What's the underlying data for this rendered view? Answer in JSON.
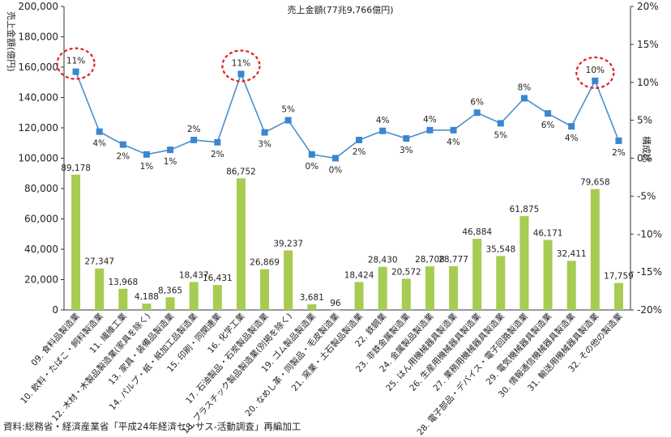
{
  "chart_data": {
    "type": "bar+line",
    "title": "売上金額(77兆9,766億円)",
    "ylabel_left": "売上金額(億円)",
    "ylabel_right": "構成比",
    "source": "資料:総務省・経済産業省「平成24年経済センサス-活動調査」再編加工",
    "ylim_left": [
      0,
      200000
    ],
    "ylim_right": [
      -20,
      20
    ],
    "yticks_left": [
      "0",
      "20,000",
      "40,000",
      "60,000",
      "80,000",
      "100,000",
      "120,000",
      "140,000",
      "160,000",
      "180,000",
      "200,000"
    ],
    "yticks_right": [
      "-20%",
      "-15%",
      "-10%",
      "-5%",
      "0%",
      "5%",
      "10%",
      "15%",
      "20%"
    ],
    "categories": [
      "09. 食料品製造業",
      "10. 飲料・たばこ・飼料製造業",
      "11. 繊維工業",
      "12. 木材・木製品製造業(家具を除く)",
      "13. 家具・装備品製造業",
      "14. パルプ・紙・紙加工品製造業",
      "15. 印刷・同関連業",
      "16. 化学工業",
      "17. 石油製品・石炭製品製造業",
      "18. プラスチック製品製造業(別掲を除く)",
      "19. ゴム製品製造業",
      "20. なめし革・同製品・毛皮製造業",
      "21. 窯業・土石製品製造業",
      "22. 鉄鋼業",
      "23. 非鉄金属製造業",
      "24. 金属製品製造業",
      "25. はん用機械器具製造業",
      "26. 生産用機械器具製造業",
      "27. 業務用機械器具製造業",
      "28. 電子部品・デバイス・電子回路製造業",
      "29. 電気機械器具製造業",
      "30. 情報通信機械器具製造業",
      "31. 輸送用機械器具製造業",
      "32. その他の製造業"
    ],
    "series": [
      {
        "kind": "bar",
        "values": [
          89178,
          27347,
          13968,
          4188,
          8365,
          18437,
          16431,
          86752,
          26869,
          39237,
          3681,
          96,
          18424,
          28430,
          20572,
          28708,
          28777,
          46884,
          35548,
          61875,
          46171,
          32411,
          79658,
          17759
        ],
        "labels": [
          "89,178",
          "27,347",
          "13,968",
          "4,188",
          "8,365",
          "18,437",
          "16,431",
          "86,752",
          "26,869",
          "39,237",
          "3,681",
          "96",
          "18,424",
          "28,430",
          "20,572",
          "28,708",
          "28,777",
          "46,884",
          "35,548",
          "61,875",
          "46,171",
          "32,411",
          "79,658",
          "17,759"
        ],
        "color": "#a6cc52"
      },
      {
        "kind": "line",
        "values": [
          11.4,
          3.5,
          1.8,
          0.5,
          1.1,
          2.4,
          2.1,
          11.1,
          3.4,
          5.0,
          0.5,
          0.0,
          2.4,
          3.6,
          2.6,
          3.7,
          3.7,
          6.0,
          4.6,
          7.9,
          5.9,
          4.2,
          10.2,
          2.3
        ],
        "labels": [
          "11%",
          "4%",
          "2%",
          "1%",
          "1%",
          "2%",
          "2%",
          "11%",
          "3%",
          "5%",
          "0%",
          "0%",
          "2%",
          "4%",
          "3%",
          "4%",
          "4%",
          "6%",
          "5%",
          "8%",
          "6%",
          "4%",
          "10%",
          "2%"
        ],
        "color": "#4a90cc",
        "marker_color": "#3a86d0"
      }
    ],
    "highlighted_indices": [
      0,
      7,
      22
    ],
    "highlight_color": "#e02020",
    "grid": false
  }
}
